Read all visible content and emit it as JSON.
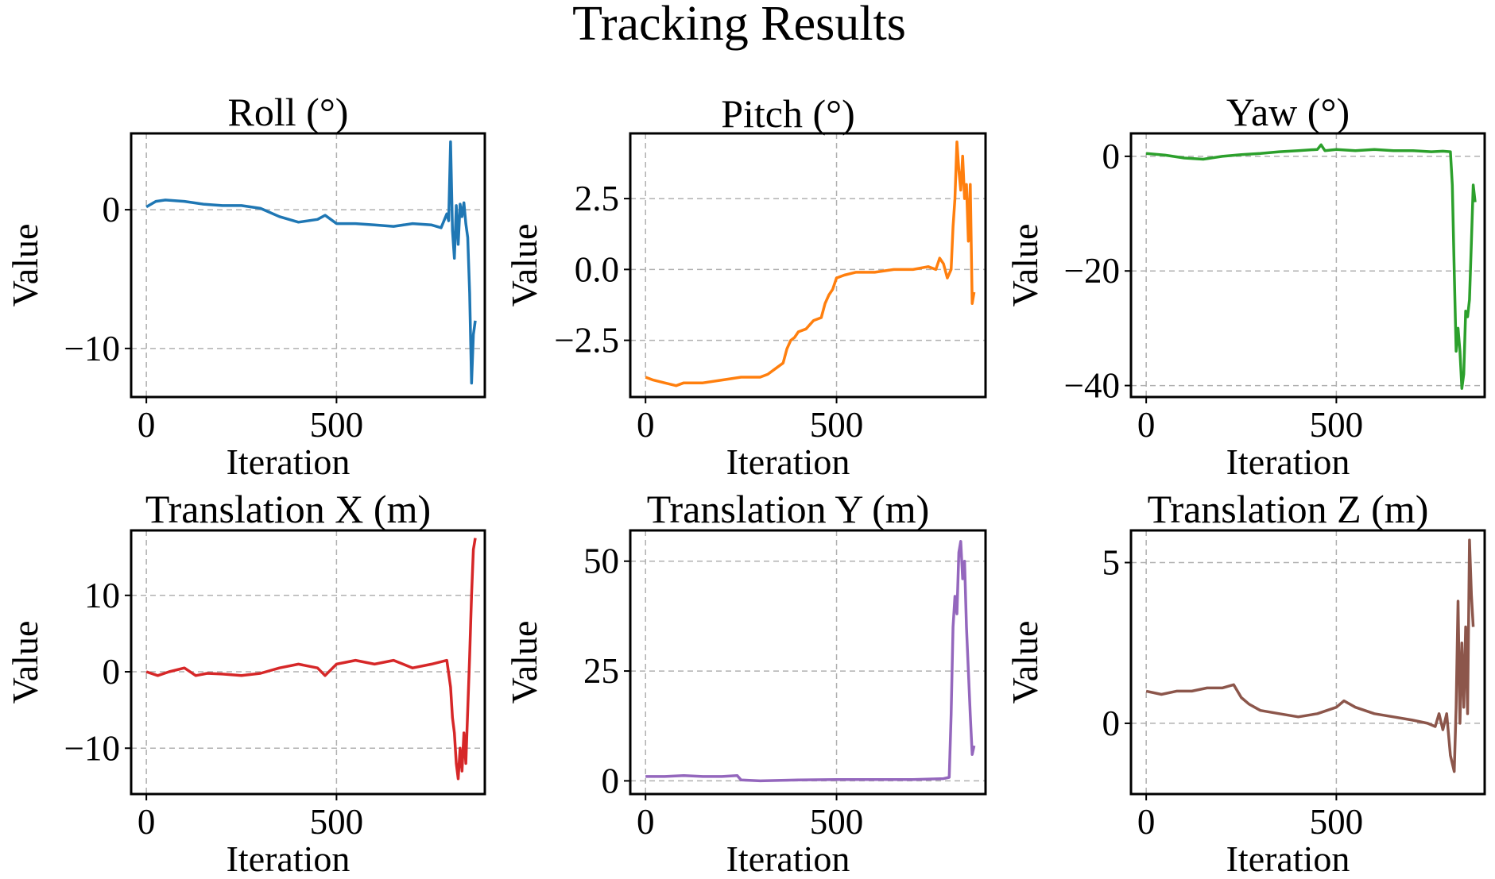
{
  "chart_data": {
    "title": "Tracking Results",
    "panels": [
      {
        "type": "line",
        "title": "Roll (°)",
        "xlabel": "Iteration",
        "ylabel": "Value",
        "color": "#1f77b4",
        "xlim": [
          -40,
          890
        ],
        "ylim": [
          -13.5,
          5.5
        ],
        "xticks": [
          0,
          500
        ],
        "xtick_labels": [
          "0",
          "500"
        ],
        "yticks": [
          0,
          -10
        ],
        "ytick_labels": [
          "0",
          "−10"
        ],
        "grid": true,
        "series": [
          {
            "name": "Roll",
            "x": [
              0,
              25,
              50,
              100,
              150,
              200,
              250,
              300,
              350,
              400,
              450,
              470,
              500,
              550,
              600,
              650,
              700,
              750,
              775,
              790,
              795,
              800,
              805,
              810,
              815,
              820,
              825,
              830,
              835,
              840,
              845,
              850,
              855,
              860,
              865
            ],
            "y": [
              0.2,
              0.6,
              0.7,
              0.6,
              0.4,
              0.3,
              0.3,
              0.1,
              -0.5,
              -0.9,
              -0.7,
              -0.4,
              -1.0,
              -1.0,
              -1.1,
              -1.2,
              -1.0,
              -1.1,
              -1.3,
              -0.3,
              -0.8,
              4.9,
              -1.5,
              -3.5,
              0.3,
              -2.5,
              0.4,
              -0.5,
              0.5,
              -1.0,
              -2.0,
              -6.0,
              -12.5,
              -9.0,
              -8.0
            ]
          }
        ]
      },
      {
        "type": "line",
        "title": "Pitch (°)",
        "xlabel": "Iteration",
        "ylabel": "Value",
        "color": "#ff7f0e",
        "xlim": [
          -40,
          890
        ],
        "ylim": [
          -4.5,
          4.8
        ],
        "xticks": [
          0,
          500
        ],
        "xtick_labels": [
          "0",
          "500"
        ],
        "yticks": [
          2.5,
          0.0,
          -2.5
        ],
        "ytick_labels": [
          "2.5",
          "0.0",
          "−2.5"
        ],
        "grid": true,
        "series": [
          {
            "name": "Pitch",
            "x": [
              0,
              20,
              50,
              80,
              100,
              150,
              200,
              250,
              300,
              320,
              340,
              360,
              370,
              380,
              390,
              400,
              420,
              440,
              460,
              470,
              480,
              490,
              500,
              520,
              550,
              600,
              650,
              700,
              740,
              760,
              770,
              780,
              790,
              800,
              805,
              810,
              815,
              820,
              825,
              830,
              835,
              840,
              845,
              850,
              855,
              860
            ],
            "y": [
              -3.8,
              -3.9,
              -4.0,
              -4.1,
              -4.0,
              -4.0,
              -3.9,
              -3.8,
              -3.8,
              -3.7,
              -3.5,
              -3.3,
              -2.8,
              -2.5,
              -2.4,
              -2.2,
              -2.1,
              -1.8,
              -1.7,
              -1.2,
              -0.9,
              -0.7,
              -0.3,
              -0.2,
              -0.1,
              -0.1,
              0.0,
              0.0,
              0.1,
              0.0,
              0.4,
              0.2,
              -0.3,
              0.0,
              1.5,
              2.5,
              4.5,
              3.5,
              2.8,
              4.0,
              2.5,
              3.0,
              1.0,
              3.0,
              -1.2,
              -0.8
            ]
          }
        ]
      },
      {
        "type": "line",
        "title": "Yaw (°)",
        "xlabel": "Iteration",
        "ylabel": "Value",
        "color": "#2ca02c",
        "xlim": [
          -40,
          890
        ],
        "ylim": [
          -42,
          4
        ],
        "xticks": [
          0,
          500
        ],
        "xtick_labels": [
          "0",
          "500"
        ],
        "yticks": [
          0,
          -20,
          -40
        ],
        "ytick_labels": [
          "0",
          "−20",
          "−40"
        ],
        "grid": true,
        "series": [
          {
            "name": "Yaw",
            "x": [
              0,
              50,
              100,
              150,
              200,
              250,
              300,
              350,
              400,
              450,
              460,
              470,
              500,
              550,
              600,
              650,
              700,
              750,
              780,
              800,
              805,
              810,
              815,
              820,
              825,
              830,
              835,
              840,
              845,
              850,
              855,
              860,
              865
            ],
            "y": [
              0.5,
              0.2,
              -0.3,
              -0.5,
              0.0,
              0.3,
              0.5,
              0.8,
              1.0,
              1.2,
              2.0,
              1.0,
              1.2,
              1.0,
              1.2,
              1.0,
              1.0,
              0.8,
              0.9,
              0.8,
              -5.0,
              -20.0,
              -34.0,
              -30.0,
              -34.0,
              -40.5,
              -38.0,
              -27.0,
              -28.0,
              -25.0,
              -15.0,
              -5.0,
              -8.0
            ]
          }
        ]
      },
      {
        "type": "line",
        "title": "Translation X (m)",
        "xlabel": "Iteration",
        "ylabel": "Value",
        "color": "#d62728",
        "xlim": [
          -40,
          890
        ],
        "ylim": [
          -16,
          18.5
        ],
        "xticks": [
          0,
          500
        ],
        "xtick_labels": [
          "0",
          "500"
        ],
        "yticks": [
          10,
          0,
          -10
        ],
        "ytick_labels": [
          "10",
          "0",
          "−10"
        ],
        "grid": true,
        "series": [
          {
            "name": "Translation X",
            "x": [
              0,
              30,
              60,
              100,
              130,
              160,
              200,
              250,
              300,
              350,
              400,
              450,
              470,
              500,
              550,
              600,
              650,
              700,
              750,
              790,
              800,
              805,
              810,
              815,
              820,
              825,
              830,
              835,
              840,
              845,
              850,
              855,
              860,
              865
            ],
            "y": [
              0.0,
              -0.5,
              0.0,
              0.5,
              -0.5,
              -0.2,
              -0.3,
              -0.5,
              -0.2,
              0.5,
              1.0,
              0.5,
              -0.5,
              1.0,
              1.5,
              1.0,
              1.5,
              0.5,
              1.0,
              1.5,
              -2.0,
              -6.0,
              -8.0,
              -12.0,
              -14.0,
              -10.0,
              -13.0,
              -8.0,
              -12.0,
              -5.0,
              2.0,
              10.0,
              16.0,
              17.5
            ]
          }
        ]
      },
      {
        "type": "line",
        "title": "Translation Y (m)",
        "xlabel": "Iteration",
        "ylabel": "Value",
        "color": "#9467bd",
        "xlim": [
          -40,
          890
        ],
        "ylim": [
          -3,
          57
        ],
        "xticks": [
          0,
          500
        ],
        "xtick_labels": [
          "0",
          "500"
        ],
        "yticks": [
          50,
          25,
          0
        ],
        "ytick_labels": [
          "50",
          "25",
          "0"
        ],
        "grid": true,
        "series": [
          {
            "name": "Translation Y",
            "x": [
              0,
              50,
              100,
              150,
              200,
              240,
              250,
              300,
              400,
              500,
              600,
              700,
              780,
              795,
              800,
              805,
              810,
              815,
              820,
              825,
              830,
              835,
              840,
              845,
              850,
              855,
              860
            ],
            "y": [
              1.0,
              1.0,
              1.2,
              1.0,
              1.0,
              1.2,
              0.2,
              0.0,
              0.2,
              0.3,
              0.3,
              0.3,
              0.5,
              0.8,
              15.0,
              35.0,
              42.0,
              38.0,
              52.0,
              54.5,
              46.0,
              50.0,
              35.0,
              25.0,
              15.0,
              6.0,
              8.0
            ]
          }
        ]
      },
      {
        "type": "line",
        "title": "Translation Z (m)",
        "xlabel": "Iteration",
        "ylabel": "Value",
        "color": "#8c564b",
        "xlim": [
          -40,
          890
        ],
        "ylim": [
          -2.2,
          6.0
        ],
        "xticks": [
          0,
          500
        ],
        "xtick_labels": [
          "0",
          "500"
        ],
        "yticks": [
          5,
          0
        ],
        "ytick_labels": [
          "5",
          "0"
        ],
        "grid": true,
        "series": [
          {
            "name": "Translation Z",
            "x": [
              0,
              40,
              80,
              120,
              160,
              200,
              230,
              250,
              270,
              300,
              350,
              400,
              450,
              500,
              520,
              550,
              600,
              650,
              700,
              740,
              760,
              770,
              780,
              790,
              800,
              810,
              815,
              820,
              825,
              830,
              835,
              840,
              845,
              850,
              855,
              860
            ],
            "y": [
              1.0,
              0.9,
              1.0,
              1.0,
              1.1,
              1.1,
              1.2,
              0.8,
              0.6,
              0.4,
              0.3,
              0.2,
              0.3,
              0.5,
              0.7,
              0.5,
              0.3,
              0.2,
              0.1,
              0.0,
              -0.1,
              0.3,
              -0.2,
              0.3,
              -1.0,
              -1.5,
              0.5,
              3.8,
              0.0,
              2.5,
              0.5,
              3.0,
              0.3,
              5.7,
              4.0,
              3.0
            ]
          }
        ]
      }
    ]
  }
}
